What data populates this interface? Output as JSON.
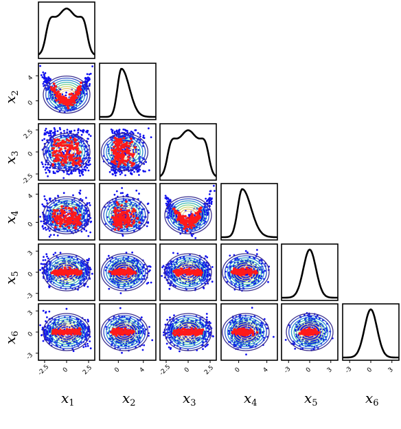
{
  "chart_data": {
    "type": "scatter",
    "layout": "corner-plot",
    "variables": [
      "x1",
      "x2",
      "x3",
      "x4",
      "x5",
      "x6"
    ],
    "axis_labels": [
      {
        "base": "x",
        "sub": "1"
      },
      {
        "base": "x",
        "sub": "2"
      },
      {
        "base": "x",
        "sub": "3"
      },
      {
        "base": "x",
        "sub": "4"
      },
      {
        "base": "x",
        "sub": "5"
      },
      {
        "base": "x",
        "sub": "6"
      }
    ],
    "ranges": [
      [
        -3.2,
        3.2
      ],
      [
        -3.0,
        6.0
      ],
      [
        -3.2,
        3.2
      ],
      [
        -2.5,
        5.5
      ],
      [
        -4.0,
        4.0
      ],
      [
        -4.0,
        4.0
      ]
    ],
    "ticks": [
      {
        "values": [
          -2.5,
          0,
          2.5
        ],
        "labels": [
          "-2.5",
          "0",
          "2.5"
        ]
      },
      {
        "values": [
          0,
          4
        ],
        "labels": [
          "0",
          "4"
        ]
      },
      {
        "values": [
          -2.5,
          0,
          2.5
        ],
        "labels": [
          "-2.5",
          "0",
          "2.5"
        ]
      },
      {
        "values": [
          0,
          4
        ],
        "labels": [
          "0",
          "4"
        ]
      },
      {
        "values": [
          -3,
          0,
          3
        ],
        "labels": [
          "-3",
          "0",
          "3"
        ]
      },
      {
        "values": [
          -3,
          0,
          3
        ],
        "labels": [
          "-3",
          "0",
          "3"
        ]
      }
    ],
    "series": [
      {
        "role": "samples",
        "color": "#1010ee",
        "points_per_panel": 450
      },
      {
        "role": "density-contours",
        "palette": [
          "#3b2f8f",
          "#3050c8",
          "#2a8fd0",
          "#36b7b0",
          "#7ccf8a",
          "#c9d86f",
          "#e8c36a",
          "#f3d9a0"
        ]
      },
      {
        "role": "highlighted-samples",
        "color": "#ff1a1a",
        "points_per_panel": 130
      }
    ],
    "diagonal": "marginal-density",
    "grid": false,
    "colors": {
      "samples": "#1010ee",
      "highlight": "#ff1a1a",
      "density_line": "#000000"
    }
  }
}
